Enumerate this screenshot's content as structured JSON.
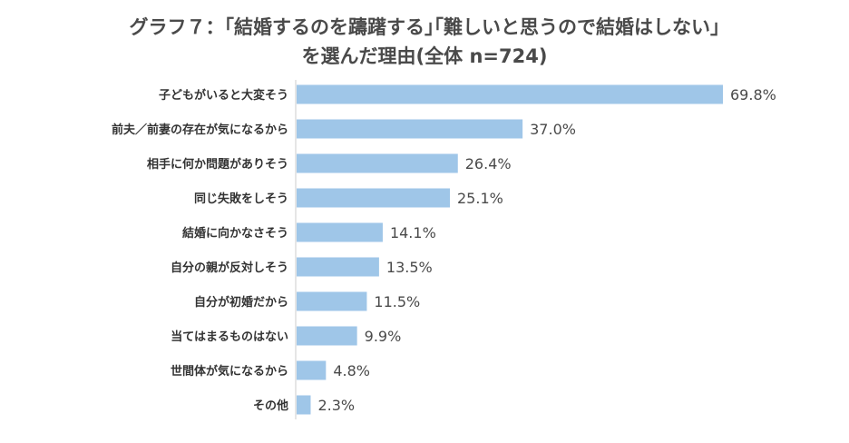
{
  "title": {
    "line1": "グラフ７：｢結婚するのを躊躇する｣｢難しいと思うので結婚はしない｣",
    "line2": "を選んだ理由(全体 n=724)"
  },
  "colors": {
    "bar": "#9fc6e8",
    "axis": "#cccccc"
  },
  "chart_data": {
    "type": "bar",
    "orientation": "horizontal",
    "title": "グラフ７：｢結婚するのを躊躇する｣｢難しいと思うので結婚はしない｣を選んだ理由(全体 n=724)",
    "unit": "%",
    "categories": [
      "子どもがいると大変そう",
      "前夫／前妻の存在が気になるから",
      "相手に何か問題がありそう",
      "同じ失敗をしそう",
      "結婚に向かなさそう",
      "自分の親が反対しそう",
      "自分が初婚だから",
      "当てはまるものはない",
      "世間体が気になるから",
      "その他"
    ],
    "values": [
      69.8,
      37.0,
      26.4,
      25.1,
      14.1,
      13.5,
      11.5,
      9.9,
      4.8,
      2.3
    ],
    "labels": [
      "69.8%",
      "37.0%",
      "26.4%",
      "25.1%",
      "14.1%",
      "13.5%",
      "11.5%",
      "9.9%",
      "4.8%",
      "2.3%"
    ]
  }
}
